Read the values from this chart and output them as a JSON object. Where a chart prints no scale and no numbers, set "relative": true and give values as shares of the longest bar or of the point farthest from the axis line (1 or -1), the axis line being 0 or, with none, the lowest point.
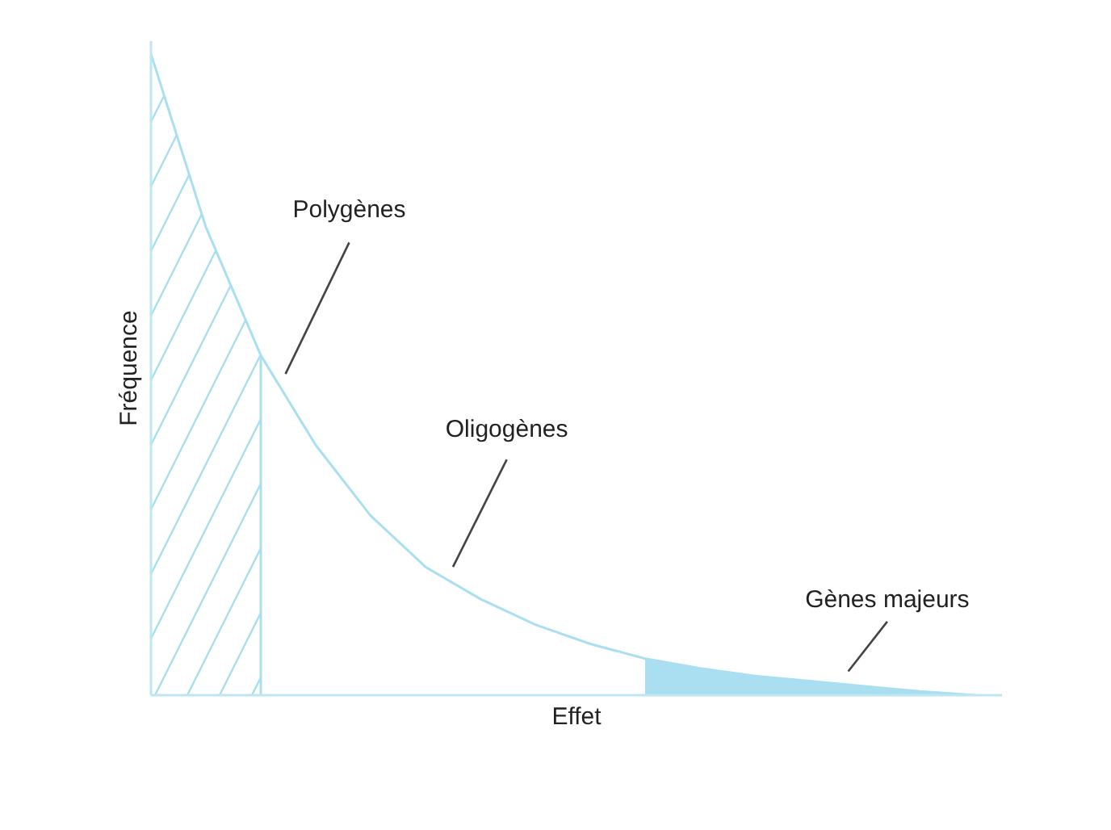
{
  "chart_data": {
    "type": "line",
    "xlabel": "Effet",
    "ylabel": "Fréquence",
    "relative": true,
    "categories": [
      null,
      null,
      null,
      null,
      null,
      null,
      null,
      null,
      null,
      null,
      null,
      null,
      null,
      null,
      null,
      null
    ],
    "series": [
      {
        "color": "#a9dff0",
        "values": [
          1,
          0.73,
          0.53,
          0.39,
          0.28,
          0.2,
          0.15,
          0.11,
          0.08,
          0.057,
          0.042,
          0.03,
          0.022,
          0.014,
          0.006,
          0
        ]
      },
      {
        "type": "area",
        "color": "#a9dff0",
        "values": [
          1,
          0.73,
          0.53,
          null,
          null,
          null,
          null,
          null,
          null,
          null,
          null,
          null,
          null,
          null,
          null,
          null
        ]
      },
      {
        "type": "area",
        "color": "#a9dff0",
        "values": [
          null,
          null,
          null,
          null,
          null,
          null,
          null,
          null,
          null,
          0.057,
          0.042,
          0.03,
          0.022,
          0.014,
          0.006,
          0
        ]
      }
    ],
    "annotations": [
      "Polygènes",
      "Oligogènes",
      "Gènes majeurs"
    ]
  }
}
